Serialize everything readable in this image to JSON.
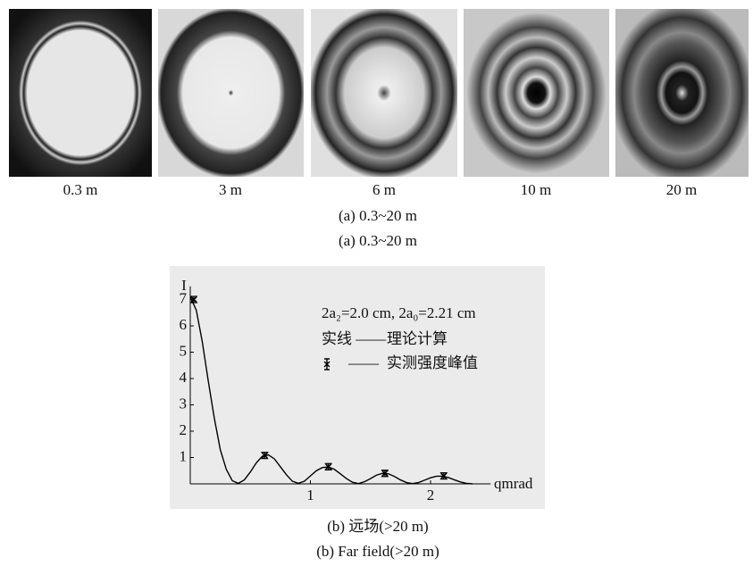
{
  "photos": {
    "labels": [
      "0.3 m",
      "3 m",
      "6 m",
      "10 m",
      "20 m"
    ]
  },
  "captions": [
    "(a) 0.3~20 m",
    "(a) 0.3~20 m",
    "(b) 远场(>20 m)",
    "(b) Far field(>20 m)"
  ],
  "chart_data": {
    "type": "line",
    "y_label": "I",
    "x_label": "qmrad",
    "annotations": [
      "2a₂=2.0 cm, 2a₀=2.21 cm",
      "实线 ——",
      "——"
    ],
    "xlim": [
      0,
      2.5
    ],
    "ylim": [
      0,
      7.5
    ],
    "xticks": [
      1,
      2
    ],
    "yticks": [
      1,
      2,
      3,
      4,
      5,
      6,
      7
    ],
    "grid": false,
    "series": [
      {
        "name": "理论计算",
        "color": "#000000",
        "style": "line",
        "x": [
          0,
          0.05,
          0.1,
          0.15,
          0.2,
          0.25,
          0.3,
          0.35,
          0.4,
          0.45,
          0.5,
          0.55,
          0.6,
          0.65,
          0.7,
          0.75,
          0.8,
          0.85,
          0.9,
          0.95,
          1.0,
          1.05,
          1.1,
          1.15,
          1.2,
          1.25,
          1.3,
          1.35,
          1.4,
          1.45,
          1.5,
          1.55,
          1.6,
          1.65,
          1.7,
          1.75,
          1.8,
          1.85,
          1.9,
          1.95,
          2.0,
          2.05,
          2.1,
          2.15,
          2.2,
          2.25,
          2.3,
          2.35
        ],
        "values": [
          7.1,
          6.6,
          5.4,
          3.9,
          2.5,
          1.3,
          0.55,
          0.12,
          0.02,
          0.15,
          0.45,
          0.8,
          1.05,
          1.1,
          0.95,
          0.65,
          0.35,
          0.1,
          0.02,
          0.1,
          0.3,
          0.5,
          0.62,
          0.64,
          0.55,
          0.38,
          0.2,
          0.06,
          0.01,
          0.08,
          0.2,
          0.33,
          0.4,
          0.38,
          0.28,
          0.15,
          0.05,
          0.01,
          0.05,
          0.14,
          0.23,
          0.29,
          0.29,
          0.24,
          0.15,
          0.07,
          0.02,
          0
        ]
      },
      {
        "name": "实测强度峰值",
        "color": "#000000",
        "style": "errorbar",
        "x": [
          0.03,
          0.62,
          1.15,
          1.62,
          2.11
        ],
        "values": [
          7.0,
          1.08,
          0.65,
          0.4,
          0.3
        ],
        "errors": [
          0.12,
          0.12,
          0.12,
          0.12,
          0.12
        ]
      }
    ]
  }
}
